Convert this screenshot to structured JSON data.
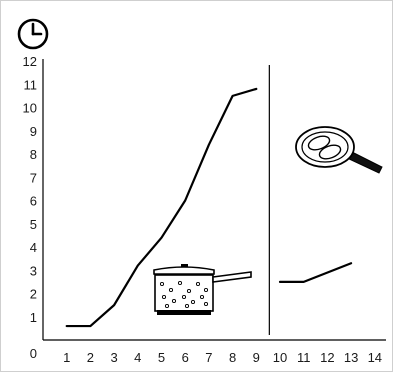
{
  "chart_data": {
    "type": "line",
    "title": "",
    "xlabel": "",
    "ylabel": "",
    "xlim": [
      0,
      14
    ],
    "ylim": [
      0,
      12
    ],
    "x_ticks": [
      "1",
      "2",
      "3",
      "4",
      "5",
      "6",
      "7",
      "8",
      "9",
      "10",
      "11",
      "12",
      "13",
      "14"
    ],
    "y_ticks": [
      "0",
      "1",
      "2",
      "3",
      "4",
      "5",
      "6",
      "7",
      "8",
      "9",
      "10",
      "11",
      "12"
    ],
    "grid": false,
    "divider_x": 9.55,
    "series": [
      {
        "x": [
          1,
          2,
          3,
          4,
          5,
          6,
          7,
          8,
          9
        ],
        "y": [
          0.6,
          0.6,
          1.5,
          3.2,
          4.4,
          6.0,
          8.4,
          10.5,
          10.8
        ]
      },
      {
        "x": [
          10,
          11,
          13
        ],
        "y": [
          2.5,
          2.5,
          3.3
        ]
      }
    ],
    "icons": {
      "clock": "clock-icon",
      "pot": "cooking-pot-icon",
      "pan": "frying-pan-icon"
    },
    "colors": {
      "line": "#000000",
      "background": "#ffffff",
      "pan_handle": "#111111"
    }
  }
}
